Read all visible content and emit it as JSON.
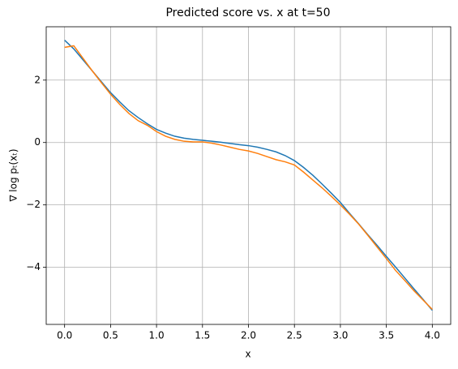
{
  "chart_data": {
    "type": "line",
    "title": "Predicted score vs. x at t=50",
    "xlabel": "x",
    "ylabel": "∇ log pₜ(xₜ)",
    "x": [
      0,
      0.1,
      0.2,
      0.3,
      0.4,
      0.5,
      0.6,
      0.7,
      0.8,
      0.9,
      1.0,
      1.1,
      1.2,
      1.3,
      1.4,
      1.5,
      1.6,
      1.7,
      1.8,
      1.9,
      2.0,
      2.1,
      2.2,
      2.3,
      2.4,
      2.5,
      2.6,
      2.7,
      2.8,
      2.9,
      3.0,
      3.1,
      3.2,
      3.3,
      3.4,
      3.5,
      3.6,
      3.7,
      3.8,
      3.9,
      4.0
    ],
    "series": [
      {
        "color": "#1f77b4",
        "values": [
          3.28,
          3.0,
          2.65,
          2.3,
          1.95,
          1.6,
          1.3,
          1.02,
          0.8,
          0.6,
          0.42,
          0.3,
          0.2,
          0.14,
          0.1,
          0.07,
          0.04,
          0.01,
          -0.03,
          -0.07,
          -0.1,
          -0.15,
          -0.22,
          -0.3,
          -0.42,
          -0.58,
          -0.8,
          -1.05,
          -1.33,
          -1.62,
          -1.92,
          -2.27,
          -2.61,
          -2.96,
          -3.3,
          -3.65,
          -3.99,
          -4.34,
          -4.69,
          -5.03,
          -5.38
        ]
      },
      {
        "color": "#ff7f0e",
        "values": [
          3.05,
          3.1,
          2.7,
          2.3,
          1.92,
          1.55,
          1.22,
          0.93,
          0.7,
          0.55,
          0.35,
          0.2,
          0.1,
          0.04,
          0.02,
          0.02,
          -0.02,
          -0.08,
          -0.15,
          -0.22,
          -0.27,
          -0.35,
          -0.45,
          -0.55,
          -0.62,
          -0.72,
          -0.95,
          -1.2,
          -1.45,
          -1.72,
          -2.0,
          -2.3,
          -2.62,
          -2.98,
          -3.35,
          -3.72,
          -4.1,
          -4.42,
          -4.75,
          -5.05,
          -5.35
        ]
      }
    ],
    "xlim": [
      -0.2,
      4.2
    ],
    "ylim": [
      -5.83,
      3.71
    ],
    "xticks": [
      {
        "value": 0,
        "label": "0.0"
      },
      0.5,
      {
        "value": 1,
        "label": "1.0"
      },
      1.5,
      {
        "value": 2,
        "label": "2.0"
      },
      2.5,
      {
        "value": 3,
        "label": "3.0"
      },
      3.5,
      {
        "value": 4,
        "label": "4.0"
      }
    ],
    "yticks": [
      {
        "value": -4,
        "label": "−4"
      },
      {
        "value": -2,
        "label": "−2"
      },
      0,
      2
    ],
    "grid": true
  }
}
